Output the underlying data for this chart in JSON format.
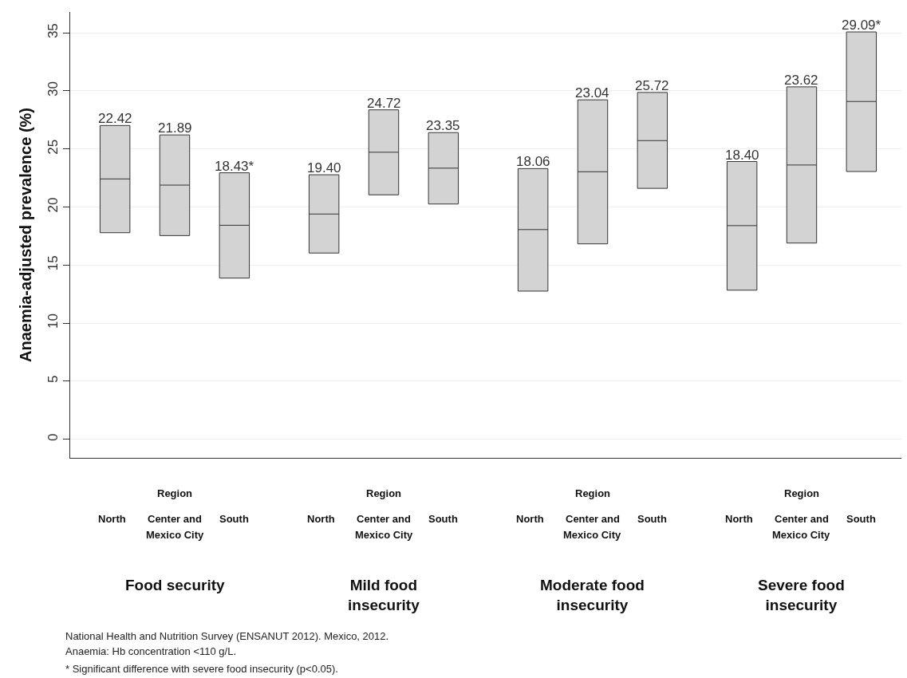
{
  "chart_data": {
    "type": "box",
    "ylabel": "Anaemia-adjusted prevalence (%)",
    "categories": [
      null,
      null,
      null,
      null,
      null,
      null,
      null,
      null,
      null,
      null,
      null,
      null
    ],
    "color": "#d3d3d3",
    "boxes": [
      {
        "low": 17.79,
        "q1": 17.79,
        "median": 22.42,
        "q3": 27.02,
        "high": 27.02
      },
      {
        "low": 17.54,
        "q1": 17.54,
        "median": 21.89,
        "q3": 26.21,
        "high": 26.21
      },
      {
        "low": 13.88,
        "q1": 13.88,
        "median": 18.43,
        "q3": 22.95,
        "high": 22.95
      },
      {
        "low": 16.04,
        "q1": 16.04,
        "median": 19.4,
        "q3": 22.78,
        "high": 22.78
      },
      {
        "low": 21.05,
        "q1": 21.05,
        "median": 24.72,
        "q3": 28.37,
        "high": 28.37
      },
      {
        "low": 20.26,
        "q1": 20.26,
        "median": 23.35,
        "q3": 26.41,
        "high": 26.41
      },
      {
        "low": 12.76,
        "q1": 12.76,
        "median": 18.06,
        "q3": 23.31,
        "high": 23.31
      },
      {
        "low": 16.83,
        "q1": 16.83,
        "median": 23.04,
        "q3": 29.23,
        "high": 29.23
      },
      {
        "low": 21.61,
        "q1": 21.61,
        "median": 25.72,
        "q3": 29.87,
        "high": 29.87
      },
      {
        "low": 12.84,
        "q1": 12.84,
        "median": 18.4,
        "q3": 23.92,
        "high": 23.92
      },
      {
        "low": 16.9,
        "q1": 16.9,
        "median": 23.62,
        "q3": 30.35,
        "high": 30.35
      },
      {
        "low": 23.06,
        "q1": 23.06,
        "median": 29.09,
        "q3": 35.08,
        "high": 35.08
      }
    ],
    "value_labels": [
      "22.42",
      "21.89",
      "18.43*",
      "19.40",
      "24.72",
      "23.35",
      "18.06",
      "23.04",
      "25.72",
      "18.40",
      "23.62",
      "29.09*"
    ],
    "ylim": [
      -1.6,
      36.8
    ],
    "yticks": [
      0,
      5,
      10,
      15,
      20,
      25,
      30,
      35
    ],
    "grid": "y",
    "annotations": [
      "Region",
      "North",
      "Center and",
      "Mexico City",
      "South",
      "Food security",
      "Region",
      "North",
      "Center and",
      "Mexico City",
      "South",
      "Mild food\ninsecurity",
      "Region",
      "North",
      "Center and",
      "Mexico City",
      "South",
      "Moderate food\ninsecurity",
      "Region",
      "North",
      "Center and",
      "Mexico City",
      "South",
      "Severe food\ninsecurity",
      "National Health and Nutrition Survey (ENSANUT 2012). Mexico, 2012.",
      "Anaemia: Hb concentration <110 g/L.",
      "* Significant difference with severe food insecurity (p<0.05)."
    ]
  }
}
